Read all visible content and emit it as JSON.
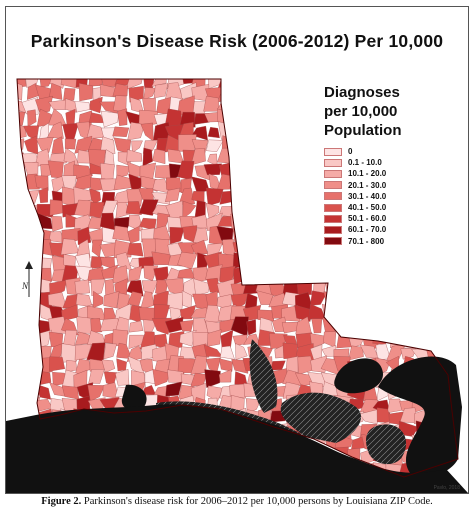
{
  "map": {
    "title": "Parkinson's Disease Risk (2006-2012) Per 10,000",
    "legend": {
      "title_lines": [
        "Diagnoses",
        "per 10,000",
        "Population"
      ],
      "classes": [
        {
          "label": "0",
          "color": "#fde4e4"
        },
        {
          "label": "0.1 - 10.0",
          "color": "#f9c8c5"
        },
        {
          "label": "10.1 - 20.0",
          "color": "#f5aba7"
        },
        {
          "label": "20.1 - 30.0",
          "color": "#ef8f89"
        },
        {
          "label": "30.1 - 40.0",
          "color": "#e6716b"
        },
        {
          "label": "40.1 - 50.0",
          "color": "#d9524d"
        },
        {
          "label": "50.1 - 60.0",
          "color": "#c43333"
        },
        {
          "label": "60.1 - 70.0",
          "color": "#a81b1e"
        },
        {
          "label": "70.1 - 800",
          "color": "#820a10"
        }
      ]
    },
    "water_color": "#111111",
    "credit": "Pavlo, 2018",
    "north_arrow_letter": "N"
  },
  "caption": {
    "label": "Figure 2.",
    "text": "Parkinson's disease risk for 2006–2012 per 10,000 persons by Louisiana ZIP Code."
  }
}
